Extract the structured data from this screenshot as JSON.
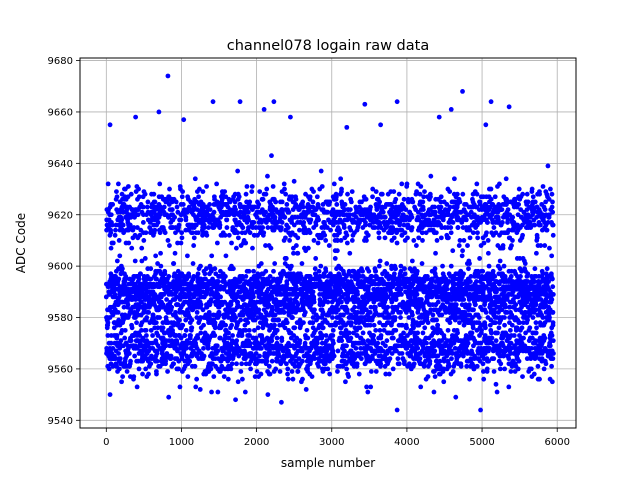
{
  "chart_data": {
    "type": "scatter",
    "title": "channel078 logain raw data",
    "xlabel": "sample number",
    "ylabel": "ADC Code",
    "xlim": [
      -350,
      6250
    ],
    "ylim": [
      9537,
      9681
    ],
    "xticks": [
      0,
      1000,
      2000,
      3000,
      4000,
      5000,
      6000
    ],
    "yticks": [
      9540,
      9560,
      9580,
      9600,
      9620,
      9640,
      9660,
      9680
    ],
    "xtick_labels": [
      "0",
      "1000",
      "2000",
      "3000",
      "4000",
      "5000",
      "6000"
    ],
    "ytick_labels": [
      "9540",
      "9560",
      "9580",
      "9600",
      "9620",
      "9640",
      "9660",
      "9680"
    ],
    "grid": true,
    "legend": "none",
    "marker_color": "#0000ff",
    "series": [
      {
        "n_points": 6000,
        "x_range": [
          0,
          5950
        ],
        "clusters": [
          {
            "center": 9620,
            "spread": 5,
            "weight": 0.24
          },
          {
            "center": 9593,
            "spread": 3,
            "weight": 0.22
          },
          {
            "center": 9584,
            "spread": 5,
            "weight": 0.26
          },
          {
            "center": 9567,
            "spread": 5,
            "weight": 0.25
          },
          {
            "center": 9605,
            "spread": 12,
            "weight": 0.03
          }
        ],
        "outliers": [
          {
            "x": 820,
            "y": 9674
          },
          {
            "x": 4740,
            "y": 9668
          },
          {
            "x": 1420,
            "y": 9664
          },
          {
            "x": 1780,
            "y": 9664
          },
          {
            "x": 2230,
            "y": 9664
          },
          {
            "x": 3870,
            "y": 9664
          },
          {
            "x": 5120,
            "y": 9664
          },
          {
            "x": 3440,
            "y": 9663
          },
          {
            "x": 5360,
            "y": 9662
          },
          {
            "x": 4590,
            "y": 9661
          },
          {
            "x": 700,
            "y": 9660
          },
          {
            "x": 2100,
            "y": 9661
          },
          {
            "x": 390,
            "y": 9658
          },
          {
            "x": 1030,
            "y": 9657
          },
          {
            "x": 4430,
            "y": 9658
          },
          {
            "x": 2450,
            "y": 9658
          },
          {
            "x": 3200,
            "y": 9654
          },
          {
            "x": 3650,
            "y": 9655
          },
          {
            "x": 50,
            "y": 9655
          },
          {
            "x": 5050,
            "y": 9655
          },
          {
            "x": 3870,
            "y": 9544
          },
          {
            "x": 4980,
            "y": 9544
          },
          {
            "x": 2330,
            "y": 9547
          },
          {
            "x": 1720,
            "y": 9548
          },
          {
            "x": 830,
            "y": 9549
          },
          {
            "x": 4650,
            "y": 9549
          },
          {
            "x": 50,
            "y": 9550
          },
          {
            "x": 2150,
            "y": 9550
          },
          {
            "x": 1850,
            "y": 9551
          },
          {
            "x": 3480,
            "y": 9551
          },
          {
            "x": 4360,
            "y": 9551
          },
          {
            "x": 5200,
            "y": 9551
          },
          {
            "x": 1250,
            "y": 9552
          },
          {
            "x": 2660,
            "y": 9552
          },
          {
            "x": 410,
            "y": 9553
          },
          {
            "x": 980,
            "y": 9553
          }
        ]
      }
    ]
  }
}
